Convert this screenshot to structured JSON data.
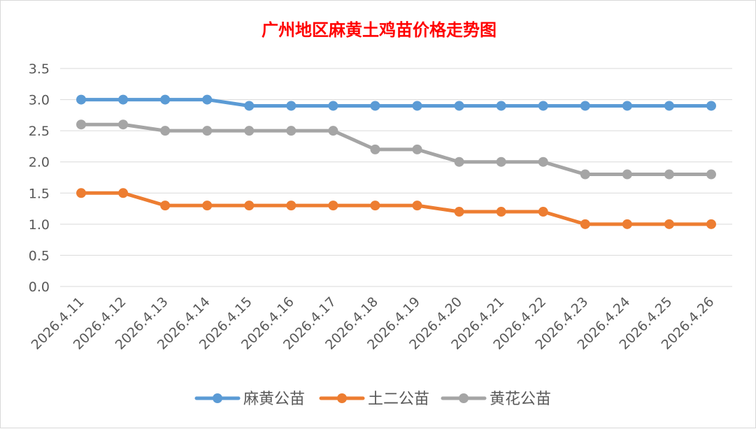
{
  "chart_data": {
    "type": "line",
    "title": "广州地区麻黄土鸡苗价格走势图",
    "xlabel": "",
    "ylabel": "",
    "categories": [
      "2026.4.11",
      "2026.4.12",
      "2026.4.13",
      "2026.4.14",
      "2026.4.15",
      "2026.4.16",
      "2026.4.17",
      "2026.4.18",
      "2026.4.19",
      "2026.4.20",
      "2026.4.21",
      "2026.4.22",
      "2026.4.23",
      "2026.4.24",
      "2026.4.25",
      "2026.4.26"
    ],
    "ylim": [
      0,
      3.5
    ],
    "yticks": [
      "0.0",
      "0.5",
      "1.0",
      "1.5",
      "2.0",
      "2.5",
      "3.0",
      "3.5"
    ],
    "grid": true,
    "legend_position": "bottom",
    "series": [
      {
        "name": "麻黄公苗",
        "color": "#5b9bd5",
        "values": [
          3.0,
          3.0,
          3.0,
          3.0,
          2.9,
          2.9,
          2.9,
          2.9,
          2.9,
          2.9,
          2.9,
          2.9,
          2.9,
          2.9,
          2.9,
          2.9
        ]
      },
      {
        "name": "土二公苗",
        "color": "#ed7d31",
        "values": [
          1.5,
          1.5,
          1.3,
          1.3,
          1.3,
          1.3,
          1.3,
          1.3,
          1.3,
          1.2,
          1.2,
          1.2,
          1.0,
          1.0,
          1.0,
          1.0
        ]
      },
      {
        "name": "黄花公苗",
        "color": "#a5a5a5",
        "values": [
          2.6,
          2.6,
          2.5,
          2.5,
          2.5,
          2.5,
          2.5,
          2.2,
          2.2,
          2.0,
          2.0,
          2.0,
          1.8,
          1.8,
          1.8,
          1.8
        ]
      }
    ]
  }
}
